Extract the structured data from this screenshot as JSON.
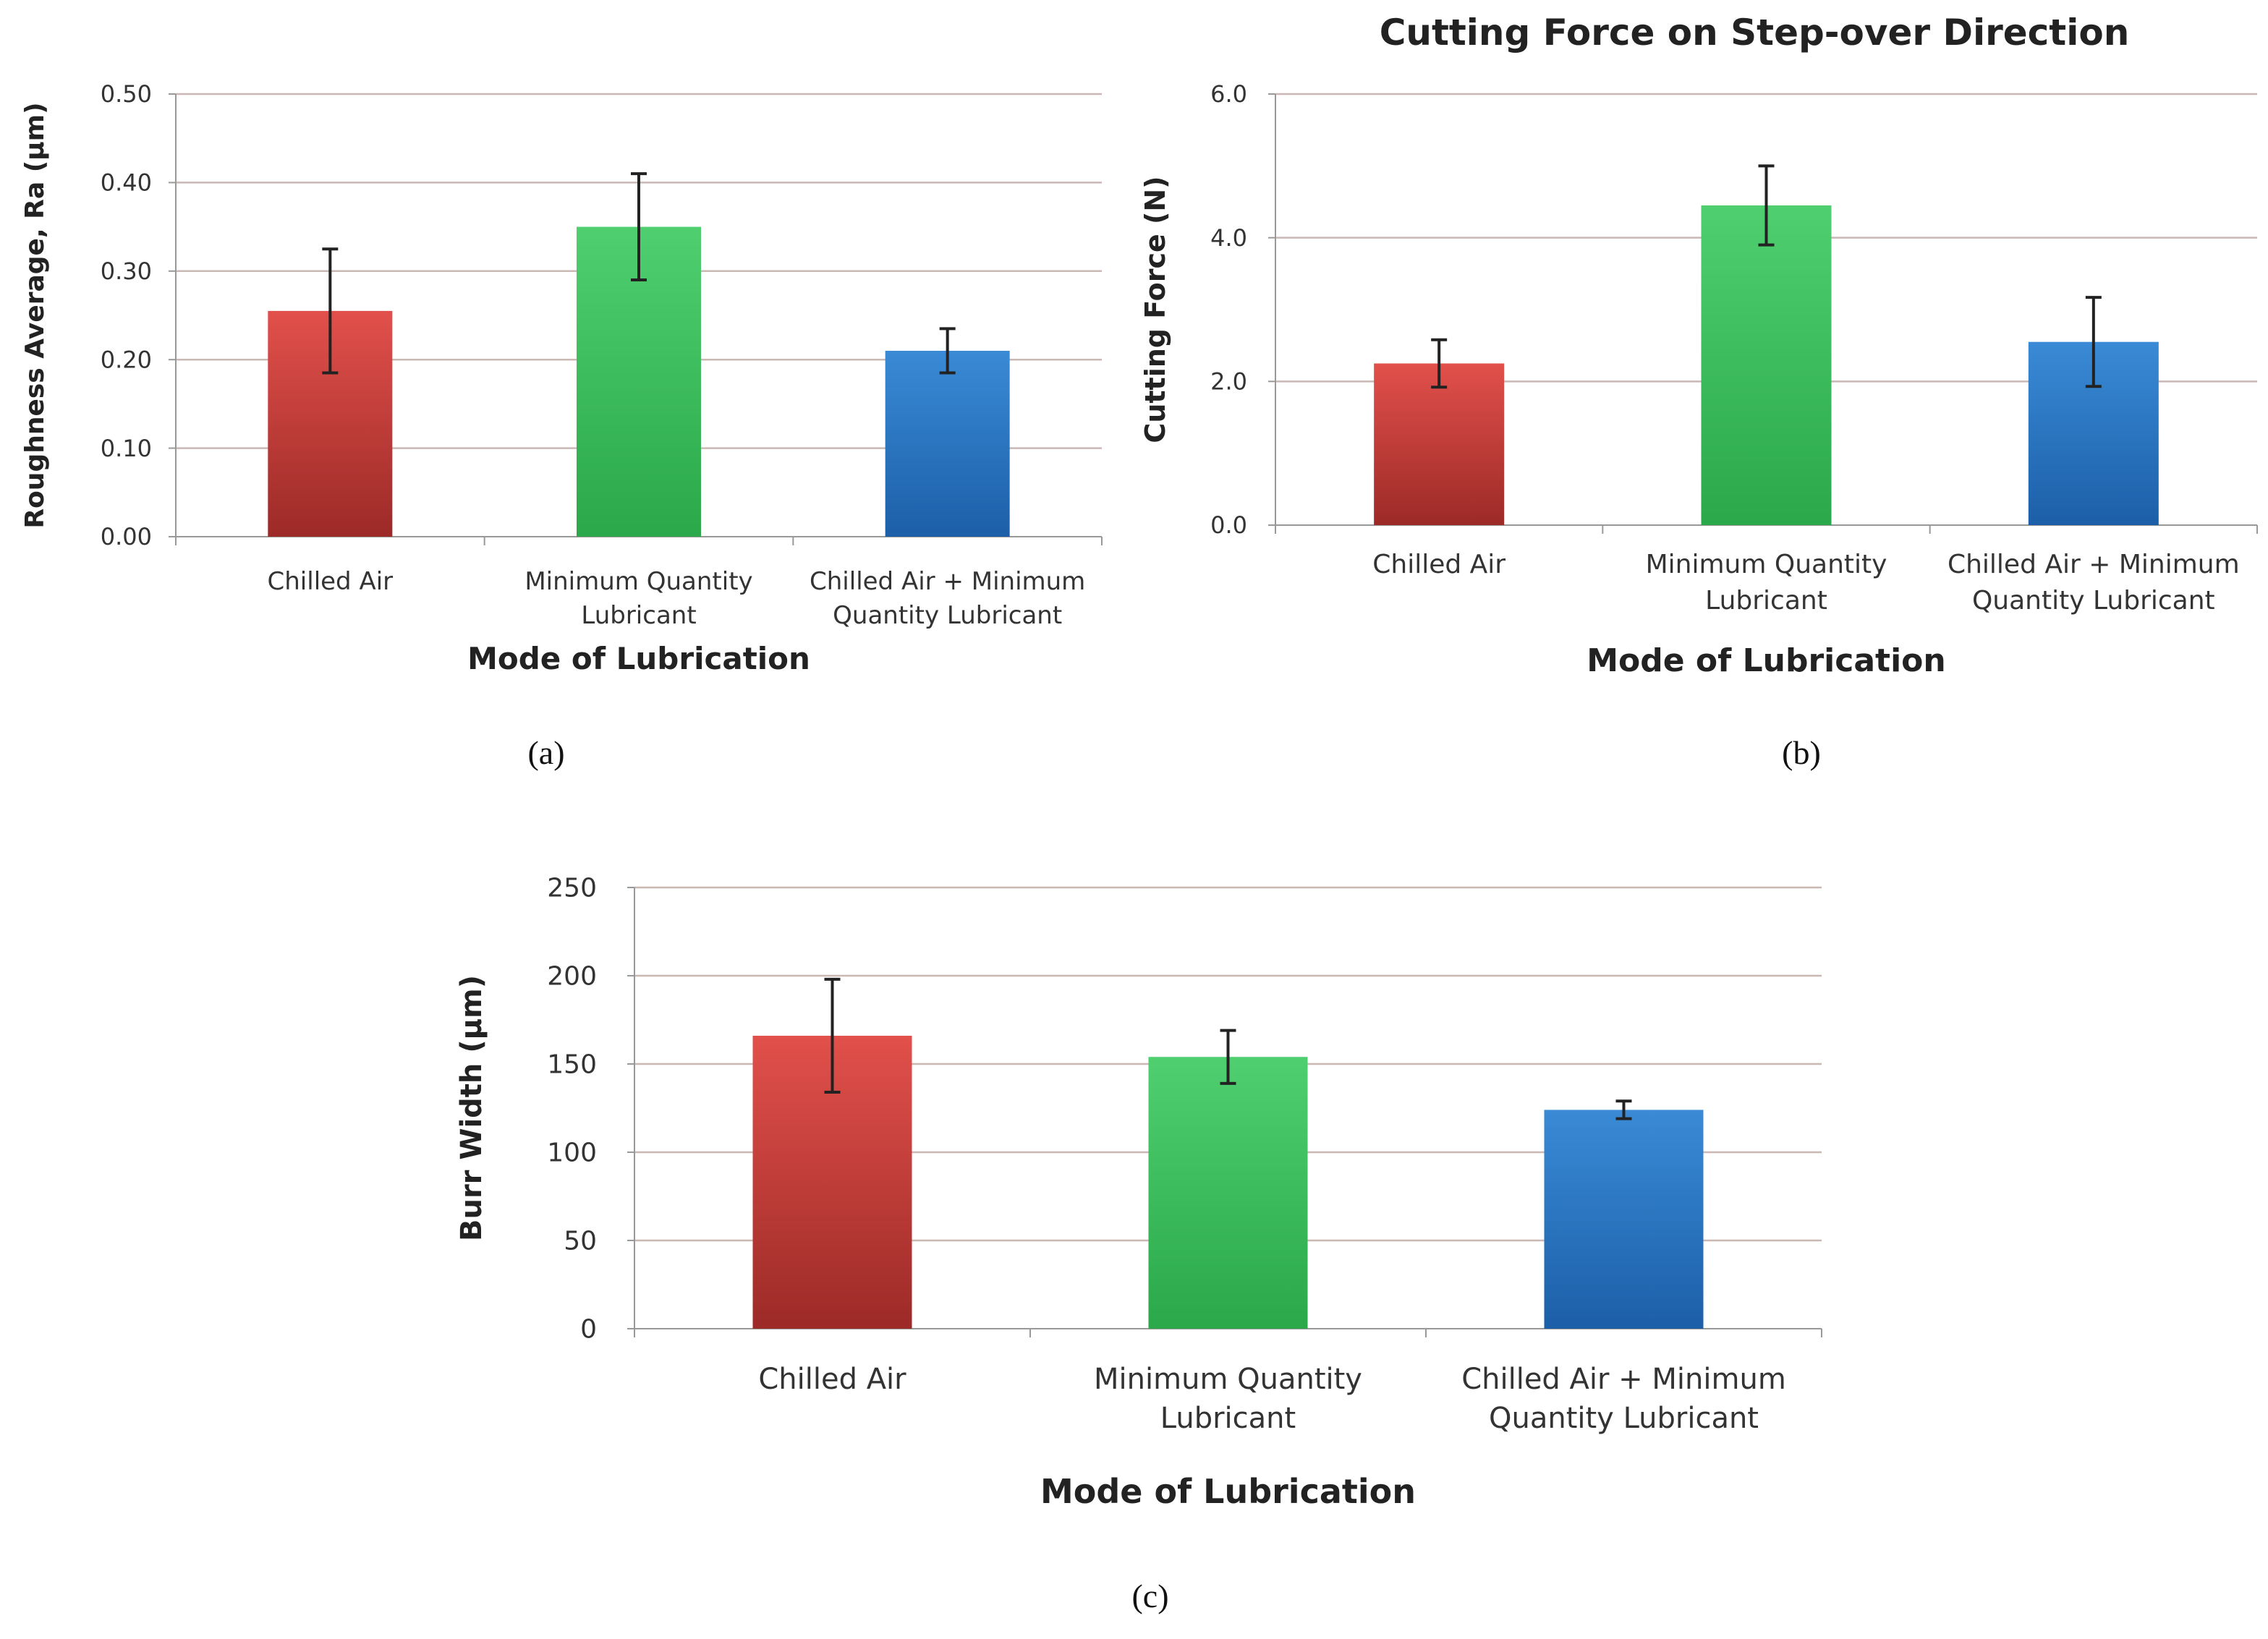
{
  "colors": {
    "red_top": "#e2504b",
    "red_bottom": "#9c2a27",
    "green_top": "#4fcf6f",
    "green_bottom": "#2aa84a",
    "blue_top": "#3a8ad6",
    "blue_bottom": "#1c5fa8",
    "grid": "#c9b8b4",
    "axis": "#999999",
    "errorbar": "#222222"
  },
  "chart_data": [
    {
      "type": "bar",
      "caption": "(a)",
      "title": "",
      "categories": [
        [
          "Chilled Air"
        ],
        [
          "Minimum Quantity",
          "Lubricant"
        ],
        [
          "Chilled Air + Minimum",
          "Quantity Lubricant"
        ]
      ],
      "values": [
        0.255,
        0.35,
        0.21
      ],
      "errors": [
        0.07,
        0.06,
        0.025
      ],
      "xlabel": "Mode of Lubrication",
      "ylabel": "Roughness Average, Ra (μm)",
      "ylim": [
        0,
        0.5
      ],
      "yticks": [
        "0.00",
        "0.10",
        "0.20",
        "0.30",
        "0.40",
        "0.50"
      ]
    },
    {
      "type": "bar",
      "caption": "(b)",
      "title": "Cutting Force on Step-over Direction",
      "categories": [
        [
          "Chilled Air"
        ],
        [
          "Minimum Quantity",
          "Lubricant"
        ],
        [
          "Chilled Air + Minimum",
          "Quantity Lubricant"
        ]
      ],
      "values": [
        2.25,
        4.45,
        2.55
      ],
      "errors": [
        0.33,
        0.55,
        0.62
      ],
      "xlabel": "Mode of Lubrication",
      "ylabel": "Cutting Force (N)",
      "ylim": [
        0,
        6
      ],
      "yticks": [
        "0.0",
        "2.0",
        "4.0",
        "6.0"
      ]
    },
    {
      "type": "bar",
      "caption": "(c)",
      "title": "",
      "categories": [
        [
          "Chilled Air"
        ],
        [
          "Minimum Quantity",
          "Lubricant"
        ],
        [
          "Chilled Air + Minimum",
          "Quantity Lubricant"
        ]
      ],
      "values": [
        166,
        154,
        124
      ],
      "errors": [
        32,
        15,
        5
      ],
      "xlabel": "Mode of Lubrication",
      "ylabel": "Burr Width (μm)",
      "ylim": [
        0,
        250
      ],
      "yticks": [
        "0",
        "50",
        "100",
        "150",
        "200",
        "250"
      ]
    }
  ]
}
